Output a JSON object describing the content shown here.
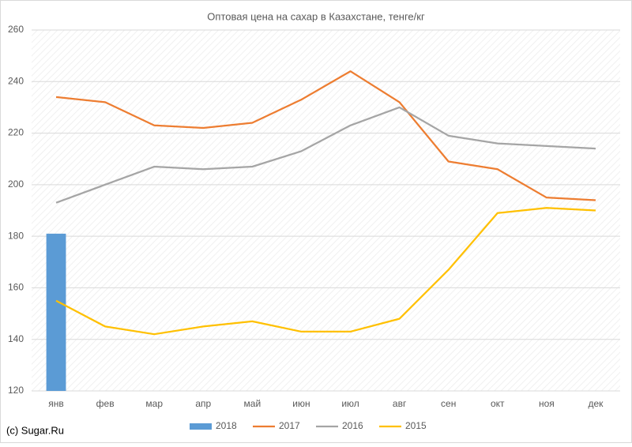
{
  "chart_data": {
    "type": "line",
    "title": "Оптовая цена на сахар в Казахстане, тенге/кг",
    "credit": "(c) Sugar.Ru",
    "categories": [
      "янв",
      "фев",
      "мар",
      "апр",
      "май",
      "июн",
      "июл",
      "авг",
      "сен",
      "окт",
      "ноя",
      "дек"
    ],
    "series": [
      {
        "name": "2018",
        "type": "bar",
        "color": "#5b9bd5",
        "values": [
          181,
          null,
          null,
          null,
          null,
          null,
          null,
          null,
          null,
          null,
          null,
          null
        ]
      },
      {
        "name": "2017",
        "color": "#ed7d31",
        "values": [
          234,
          232,
          223,
          222,
          224,
          233,
          244,
          232,
          209,
          206,
          195,
          194
        ]
      },
      {
        "name": "2016",
        "color": "#a5a5a5",
        "values": [
          193,
          200,
          207,
          206,
          207,
          213,
          223,
          230,
          219,
          216,
          215,
          214
        ]
      },
      {
        "name": "2015",
        "color": "#ffc000",
        "values": [
          155,
          145,
          142,
          145,
          147,
          143,
          143,
          148,
          167,
          189,
          191,
          190
        ]
      }
    ],
    "ylim": [
      120,
      260
    ],
    "yticks": [
      120,
      140,
      160,
      180,
      200,
      220,
      240,
      260
    ],
    "grid": true,
    "legend": "bottom"
  }
}
